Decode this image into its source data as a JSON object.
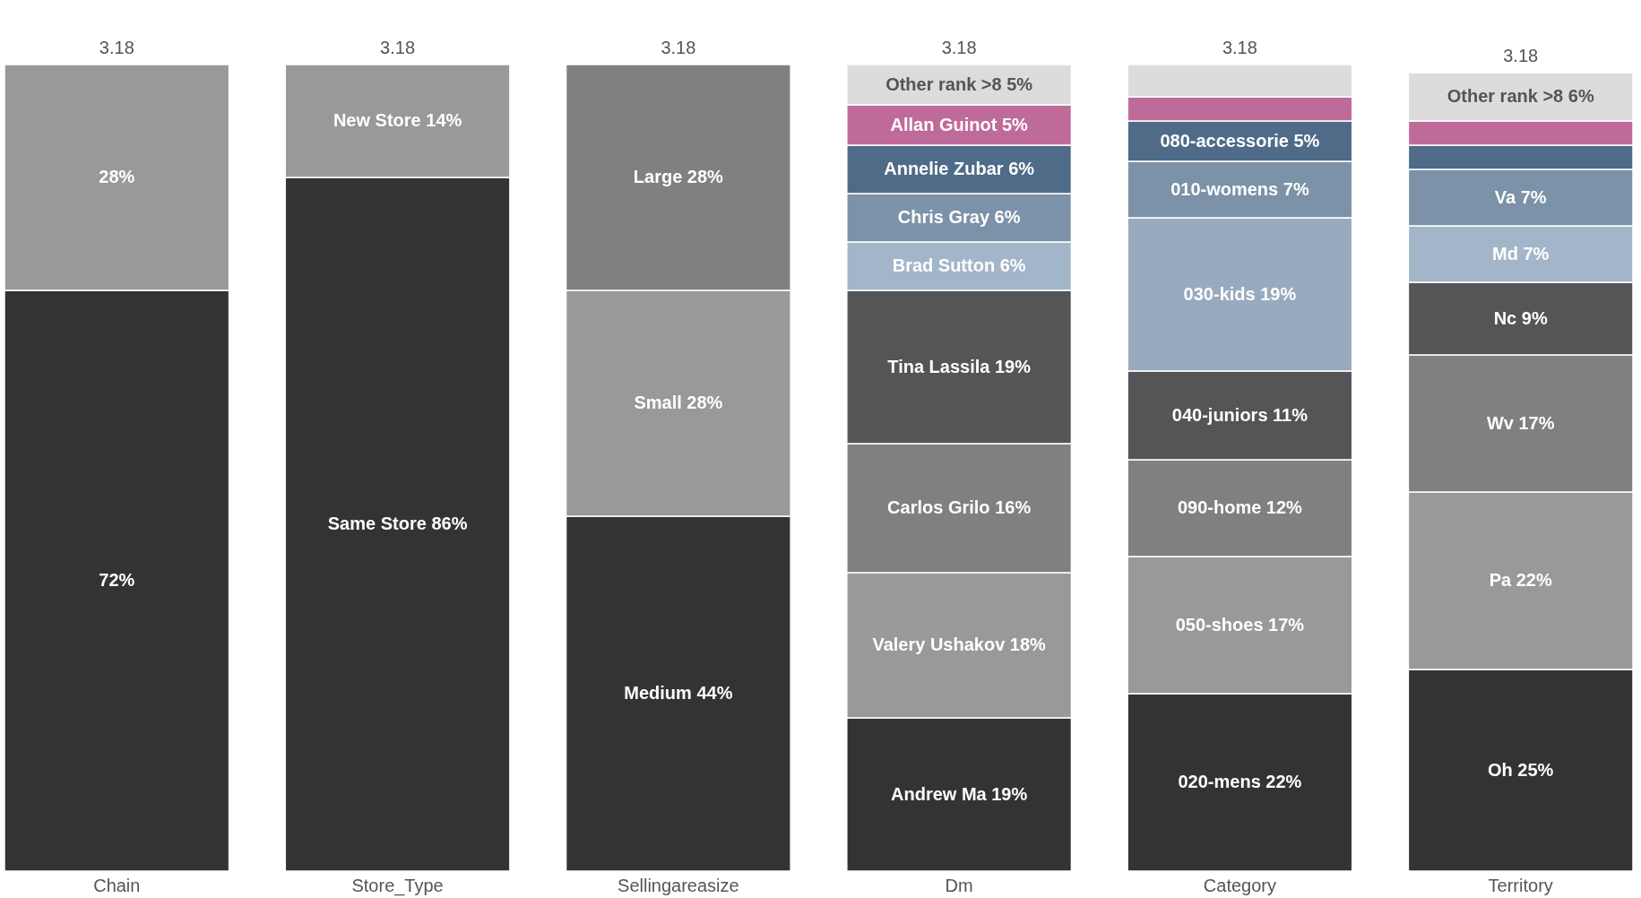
{
  "chart_data": {
    "type": "bar",
    "stacked": true,
    "categories": [
      "Chain",
      "Store_Type",
      "Sellingareasize",
      "Dm",
      "Category",
      "Territory"
    ],
    "ylim": [
      0,
      100
    ],
    "tick_labels": "x",
    "grid": false,
    "annotations": [
      {
        "text": "3.18",
        "x": "Chain",
        "y": 100
      },
      {
        "text": "3.18",
        "x": "Store_Type",
        "y": 100
      },
      {
        "text": "3.18",
        "x": "Sellingareasize",
        "y": 100
      },
      {
        "text": "3.18",
        "x": "Dm",
        "y": 100
      },
      {
        "text": "3.18",
        "x": "Category",
        "y": 100
      },
      {
        "text": "3.18",
        "x": "Territory",
        "y": 99
      }
    ],
    "series": [
      {
        "values": [
          72,
          86,
          44,
          19,
          22,
          25
        ],
        "colors": [
          "#333333",
          "#333333",
          "#333333",
          "#333333",
          "#333333",
          "#333333"
        ],
        "value_labels": [
          "72%",
          "Same Store 86%",
          "Medium 44%",
          "Andrew Ma 19%",
          "020-mens 22%",
          "Oh 25%"
        ]
      },
      {
        "values": [
          28,
          14,
          28,
          18,
          17,
          22
        ],
        "colors": [
          "#999999",
          "#999999",
          "#999999",
          "#999999",
          "#999999",
          "#999999"
        ],
        "value_labels": [
          "28%",
          "New Store 14%",
          "Small 28%",
          "Valery Ushakov 18%",
          "050-shoes 17%",
          "Pa 22%"
        ]
      },
      {
        "values": [
          null,
          null,
          28,
          16,
          12,
          17
        ],
        "colors": [
          null,
          null,
          "#808080",
          "#808080",
          "#808080",
          "#808080"
        ],
        "value_labels": [
          null,
          null,
          "Large 28%",
          "Carlos Grilo 16%",
          "090-home 12%",
          "Wv 17%"
        ]
      },
      {
        "values": [
          null,
          null,
          null,
          19,
          11,
          9
        ],
        "colors": [
          null,
          null,
          null,
          "#555557",
          "#555557",
          "#555557"
        ],
        "value_labels": [
          null,
          null,
          null,
          "Tina Lassila 19%",
          "040-juniors 11%",
          "Nc 9%"
        ]
      },
      {
        "values": [
          null,
          null,
          null,
          6,
          19,
          7
        ],
        "colors": [
          null,
          null,
          null,
          "#a3b6c9",
          "#98abbe",
          "#a3b6c9"
        ],
        "value_labels": [
          null,
          null,
          null,
          "Brad Sutton 6%",
          "030-kids 19%",
          "Md 7%"
        ]
      },
      {
        "values": [
          null,
          null,
          null,
          6,
          7,
          7
        ],
        "colors": [
          null,
          null,
          null,
          "#7b92a8",
          "#7b92a8",
          "#7b92a8"
        ],
        "value_labels": [
          null,
          null,
          null,
          "Chris Gray 6%",
          "010-womens 7%",
          "Va 7%"
        ]
      },
      {
        "values": [
          null,
          null,
          null,
          6,
          5,
          3
        ],
        "colors": [
          null,
          null,
          null,
          "#4f6b88",
          "#4f6b88",
          "#4f6b88"
        ],
        "value_labels": [
          null,
          null,
          null,
          "Annelie Zubar 6%",
          "080-accessorie 5%",
          null
        ]
      },
      {
        "values": [
          null,
          null,
          null,
          5,
          3,
          3
        ],
        "colors": [
          null,
          null,
          null,
          "#bf6b99",
          "#bf6b99",
          "#bf6b99"
        ],
        "value_labels": [
          null,
          null,
          null,
          "Allan Guinot 5%",
          null,
          null
        ]
      },
      {
        "values": [
          null,
          null,
          null,
          5,
          4,
          6
        ],
        "colors": [
          null,
          null,
          null,
          "#dcdcdc",
          "#dcdcdc",
          "#dcdcdc"
        ],
        "value_labels": [
          null,
          null,
          null,
          "Other rank >8 5%",
          null,
          "Other rank >8 6%"
        ]
      }
    ]
  }
}
